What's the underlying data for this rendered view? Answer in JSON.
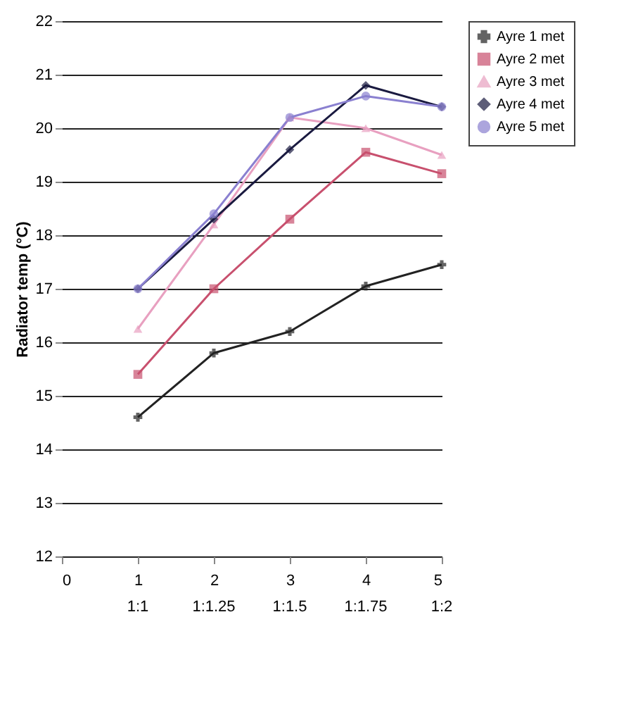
{
  "chart_data": {
    "type": "line",
    "ylabel": "Radiator temp (°C)",
    "x": [
      1,
      2,
      3,
      4,
      5
    ],
    "xlim": [
      0,
      5
    ],
    "xticks": [
      0,
      1,
      2,
      3,
      4,
      5
    ],
    "ylim": [
      12,
      22
    ],
    "yticks": [
      12,
      13,
      14,
      15,
      16,
      17,
      18,
      19,
      20,
      21,
      22
    ],
    "annotations": [
      "1:1",
      "1:1.25",
      "1:1.5",
      "1:1.75",
      "1:2"
    ],
    "grid": "y",
    "legend": "right",
    "line_style": "solid",
    "series": [
      {
        "name": "Ayre 1 met",
        "color": "#222222",
        "marker": "cross",
        "values": [
          14.6,
          15.8,
          16.2,
          17.05,
          17.45
        ]
      },
      {
        "name": "Ayre 2 met",
        "color": "#c8506e",
        "marker": "square",
        "values": [
          15.4,
          17.0,
          18.3,
          19.55,
          19.15
        ]
      },
      {
        "name": "Ayre 3 met",
        "color": "#e8a0c0",
        "marker": "triangle",
        "values": [
          16.25,
          18.2,
          20.2,
          20.0,
          19.5
        ]
      },
      {
        "name": "Ayre 4 met",
        "color": "#1a1a40",
        "marker": "diamond",
        "values": [
          17.0,
          18.3,
          19.6,
          20.8,
          20.4
        ]
      },
      {
        "name": "Ayre 5 met",
        "color": "#8a80d0",
        "marker": "circle",
        "values": [
          17.0,
          18.4,
          20.2,
          20.6,
          20.4
        ]
      }
    ]
  }
}
